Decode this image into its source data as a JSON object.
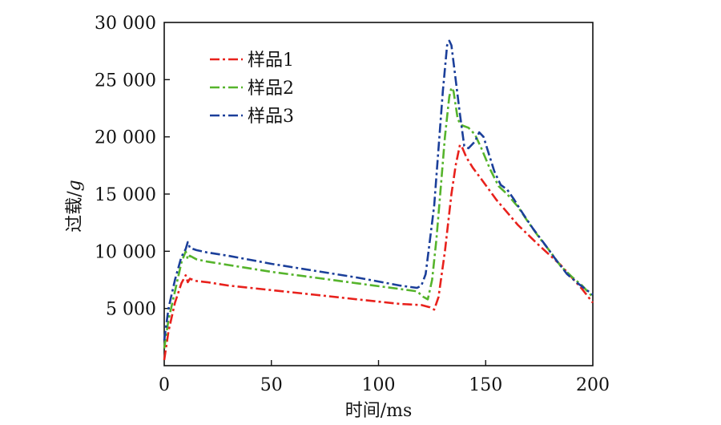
{
  "chart_data": {
    "type": "line",
    "title": "",
    "xlabel": "时间/ms",
    "ylabel_prefix": "过载/",
    "ylabel_unit": "g",
    "xlim": [
      0,
      200
    ],
    "ylim": [
      0,
      30000
    ],
    "x_ticks": [
      0,
      50,
      100,
      150,
      200
    ],
    "x_tick_labels": [
      "0",
      "50",
      "100",
      "150",
      "200"
    ],
    "y_ticks": [
      5000,
      10000,
      15000,
      20000,
      25000,
      30000
    ],
    "y_tick_labels": [
      "5 000",
      "10 000",
      "15 000",
      "20 000",
      "25 000",
      "30 000"
    ],
    "grid": false,
    "legend_position": "top-left",
    "series": [
      {
        "name": "样品1",
        "color": "#e8211c",
        "points": [
          [
            0,
            500
          ],
          [
            2,
            3000
          ],
          [
            5,
            5500
          ],
          [
            8,
            7200
          ],
          [
            10,
            7900
          ],
          [
            11,
            7300
          ],
          [
            12,
            7600
          ],
          [
            15,
            7400
          ],
          [
            20,
            7300
          ],
          [
            30,
            7000
          ],
          [
            50,
            6600
          ],
          [
            70,
            6200
          ],
          [
            90,
            5800
          ],
          [
            110,
            5400
          ],
          [
            120,
            5300
          ],
          [
            124,
            5100
          ],
          [
            126,
            4900
          ],
          [
            128,
            6000
          ],
          [
            131,
            10000
          ],
          [
            134,
            15000
          ],
          [
            136,
            17500
          ],
          [
            138,
            19300
          ],
          [
            139,
            19100
          ],
          [
            141,
            18200
          ],
          [
            144,
            17300
          ],
          [
            148,
            16300
          ],
          [
            155,
            14500
          ],
          [
            165,
            12300
          ],
          [
            175,
            10500
          ],
          [
            185,
            8800
          ],
          [
            195,
            6700
          ],
          [
            200,
            5500
          ]
        ]
      },
      {
        "name": "样品2",
        "color": "#56b42c",
        "points": [
          [
            0,
            1500
          ],
          [
            2,
            4000
          ],
          [
            5,
            6500
          ],
          [
            8,
            9000
          ],
          [
            10,
            10000
          ],
          [
            11,
            9300
          ],
          [
            12,
            9600
          ],
          [
            15,
            9300
          ],
          [
            20,
            9100
          ],
          [
            30,
            8800
          ],
          [
            50,
            8200
          ],
          [
            70,
            7700
          ],
          [
            90,
            7200
          ],
          [
            110,
            6700
          ],
          [
            118,
            6500
          ],
          [
            121,
            6000
          ],
          [
            123,
            5800
          ],
          [
            125,
            7500
          ],
          [
            127,
            11000
          ],
          [
            129,
            15500
          ],
          [
            131,
            20000
          ],
          [
            133,
            23500
          ],
          [
            134,
            24300
          ],
          [
            135,
            24000
          ],
          [
            137,
            21500
          ],
          [
            139,
            21000
          ],
          [
            142,
            20800
          ],
          [
            145,
            20200
          ],
          [
            148,
            19000
          ],
          [
            152,
            17200
          ],
          [
            156,
            15700
          ],
          [
            160,
            15000
          ],
          [
            165,
            13900
          ],
          [
            170,
            12500
          ],
          [
            175,
            11200
          ],
          [
            180,
            10000
          ],
          [
            185,
            8700
          ],
          [
            190,
            7800
          ],
          [
            195,
            7000
          ],
          [
            200,
            6000
          ]
        ]
      },
      {
        "name": "样品3",
        "color": "#1b3f9a",
        "points": [
          [
            0,
            2200
          ],
          [
            2,
            5000
          ],
          [
            5,
            7500
          ],
          [
            8,
            9500
          ],
          [
            10,
            10200
          ],
          [
            11,
            10800
          ],
          [
            12,
            10300
          ],
          [
            15,
            10100
          ],
          [
            20,
            9900
          ],
          [
            30,
            9600
          ],
          [
            50,
            8900
          ],
          [
            70,
            8300
          ],
          [
            90,
            7700
          ],
          [
            110,
            7000
          ],
          [
            118,
            6800
          ],
          [
            120,
            7000
          ],
          [
            122,
            8000
          ],
          [
            124,
            11000
          ],
          [
            126,
            14000
          ],
          [
            128,
            19000
          ],
          [
            130,
            24000
          ],
          [
            132,
            28000
          ],
          [
            133,
            28400
          ],
          [
            134,
            28000
          ],
          [
            136,
            25000
          ],
          [
            138,
            22000
          ],
          [
            140,
            19200
          ],
          [
            142,
            19000
          ],
          [
            145,
            19600
          ],
          [
            147,
            20400
          ],
          [
            149,
            20000
          ],
          [
            151,
            18800
          ],
          [
            154,
            17000
          ],
          [
            157,
            15800
          ],
          [
            160,
            15400
          ],
          [
            163,
            14600
          ],
          [
            167,
            13400
          ],
          [
            172,
            12000
          ],
          [
            178,
            10500
          ],
          [
            183,
            9200
          ],
          [
            188,
            8000
          ],
          [
            193,
            7200
          ],
          [
            200,
            6200
          ]
        ]
      }
    ]
  }
}
